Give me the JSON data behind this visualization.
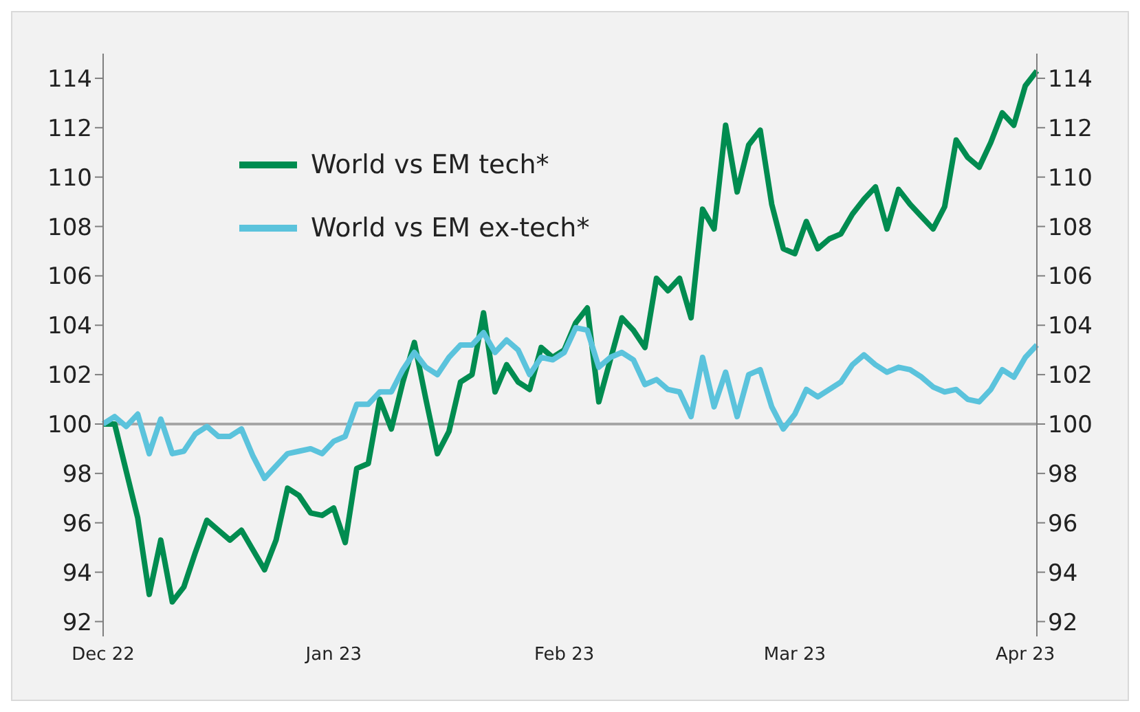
{
  "chart_data": {
    "type": "line",
    "categories": [
      "Dec 22",
      null,
      null,
      null,
      null,
      null,
      null,
      null,
      null,
      null,
      null,
      null,
      null,
      null,
      null,
      null,
      null,
      null,
      null,
      null,
      "Jan 23",
      null,
      null,
      null,
      null,
      null,
      null,
      null,
      null,
      null,
      null,
      null,
      null,
      null,
      null,
      null,
      null,
      null,
      null,
      null,
      "Feb 23",
      null,
      null,
      null,
      null,
      null,
      null,
      null,
      null,
      null,
      null,
      null,
      null,
      null,
      null,
      null,
      null,
      null,
      null,
      null,
      "Mar 23",
      null,
      null,
      null,
      null,
      null,
      null,
      null,
      null,
      null,
      null,
      null,
      null,
      null,
      null,
      null,
      null,
      null,
      null,
      null,
      "Apr 23",
      null
    ],
    "series": [
      {
        "name": "World vs EM tech*",
        "color": "#008c50",
        "values": [
          100,
          100,
          98.1,
          96.2,
          93.1,
          95.3,
          92.8,
          93.4,
          94.8,
          96.1,
          95.7,
          95.3,
          95.7,
          94.9,
          94.1,
          95.3,
          97.4,
          97.1,
          96.4,
          96.3,
          96.6,
          95.2,
          98.2,
          98.4,
          101.0,
          99.8,
          101.7,
          103.3,
          101.0,
          98.8,
          99.7,
          101.7,
          102.0,
          104.5,
          101.3,
          102.4,
          101.7,
          101.4,
          103.1,
          102.7,
          103.0,
          104.1,
          104.7,
          100.9,
          102.6,
          104.3,
          103.8,
          103.1,
          105.9,
          105.4,
          105.9,
          104.3,
          108.7,
          107.9,
          112.1,
          109.4,
          111.3,
          111.9,
          108.9,
          107.1,
          106.9,
          108.2,
          107.1,
          107.5,
          107.7,
          108.5,
          109.1,
          109.6,
          107.9,
          109.5,
          108.9,
          108.4,
          107.9,
          108.8,
          111.5,
          110.8,
          110.4,
          111.4,
          112.6,
          112.1,
          113.7,
          114.3
        ]
      },
      {
        "name": "World vs EM ex-tech*",
        "color": "#5bc3dc",
        "values": [
          100,
          100.3,
          99.9,
          100.4,
          98.8,
          100.2,
          98.8,
          98.9,
          99.6,
          99.9,
          99.5,
          99.5,
          99.8,
          98.7,
          97.8,
          98.3,
          98.8,
          98.9,
          99.0,
          98.8,
          99.3,
          99.5,
          100.8,
          100.8,
          101.3,
          101.3,
          102.2,
          102.9,
          102.3,
          102.0,
          102.7,
          103.2,
          103.2,
          103.7,
          102.9,
          103.4,
          103.0,
          102.0,
          102.7,
          102.6,
          102.9,
          103.9,
          103.8,
          102.3,
          102.7,
          102.9,
          102.6,
          101.6,
          101.8,
          101.4,
          101.3,
          100.3,
          102.7,
          100.7,
          102.1,
          100.3,
          102.0,
          102.2,
          100.7,
          99.8,
          100.4,
          101.4,
          101.1,
          101.4,
          101.7,
          102.4,
          102.8,
          102.4,
          102.1,
          102.3,
          102.2,
          101.9,
          101.5,
          101.3,
          101.4,
          101.0,
          100.9,
          101.4,
          102.2,
          101.9,
          102.7,
          103.2
        ]
      }
    ],
    "ylim": [
      91.4,
      115
    ],
    "yticks": [
      92,
      94,
      96,
      98,
      100,
      102,
      104,
      106,
      108,
      110,
      112,
      114
    ],
    "y2lim": [
      91.4,
      115
    ],
    "y2ticks": [
      92,
      94,
      96,
      98,
      100,
      102,
      104,
      106,
      108,
      110,
      112,
      114
    ],
    "ref_lines": [
      {
        "axis": "y",
        "value": 100,
        "color": "#a6a6a6"
      }
    ],
    "legend": "top left",
    "marker": "none",
    "line_style": "solid"
  }
}
